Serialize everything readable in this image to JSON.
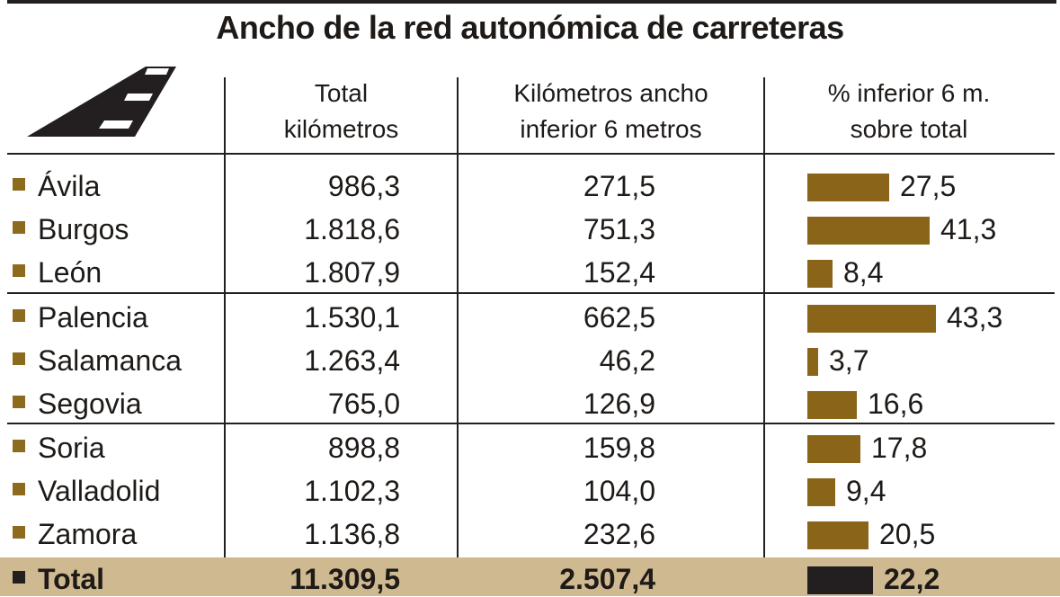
{
  "title": "Ancho de la red autonómica de carreteras",
  "headers": {
    "col1": [
      "Total",
      "kilómetros"
    ],
    "col2": [
      "Kilómetros ancho",
      "inferior 6 metros"
    ],
    "col3": [
      "% inferior 6 m.",
      "sobre total"
    ]
  },
  "icon": "road-icon",
  "colors": {
    "bar": "#8a6419",
    "total_bar": "#231f20",
    "total_row_bg": "#cfb990",
    "marker": "#8c6a1e"
  },
  "chart_data": {
    "type": "table",
    "title": "Ancho de la red autonómica de carreteras",
    "columns": [
      "",
      "Total kilómetros",
      "Kilómetros ancho inferior 6 metros",
      "% inferior 6 m. sobre total"
    ],
    "rows": [
      {
        "name": "Ávila",
        "total_km": "986,3",
        "km_narrow": "271,5",
        "pct": "27,5",
        "pct_value": 27.5
      },
      {
        "name": "Burgos",
        "total_km": "1.818,6",
        "km_narrow": "751,3",
        "pct": "41,3",
        "pct_value": 41.3
      },
      {
        "name": "León",
        "total_km": "1.807,9",
        "km_narrow": "152,4",
        "pct": "8,4",
        "pct_value": 8.4
      },
      {
        "name": "Palencia",
        "total_km": "1.530,1",
        "km_narrow": "662,5",
        "pct": "43,3",
        "pct_value": 43.3
      },
      {
        "name": "Salamanca",
        "total_km": "1.263,4",
        "km_narrow": "46,2",
        "pct": "3,7",
        "pct_value": 3.7
      },
      {
        "name": "Segovia",
        "total_km": "765,0",
        "km_narrow": "126,9",
        "pct": "16,6",
        "pct_value": 16.6
      },
      {
        "name": "Soria",
        "total_km": "898,8",
        "km_narrow": "159,8",
        "pct": "17,8",
        "pct_value": 17.8
      },
      {
        "name": "Valladolid",
        "total_km": "1.102,3",
        "km_narrow": "104,0",
        "pct": "9,4",
        "pct_value": 9.4
      },
      {
        "name": "Zamora",
        "total_km": "1.136,8",
        "km_narrow": "232,6",
        "pct": "20,5",
        "pct_value": 20.5
      }
    ],
    "total": {
      "name": "Total",
      "total_km": "11.309,5",
      "km_narrow": "2.507,4",
      "pct": "22,2",
      "pct_value": 22.2
    }
  }
}
